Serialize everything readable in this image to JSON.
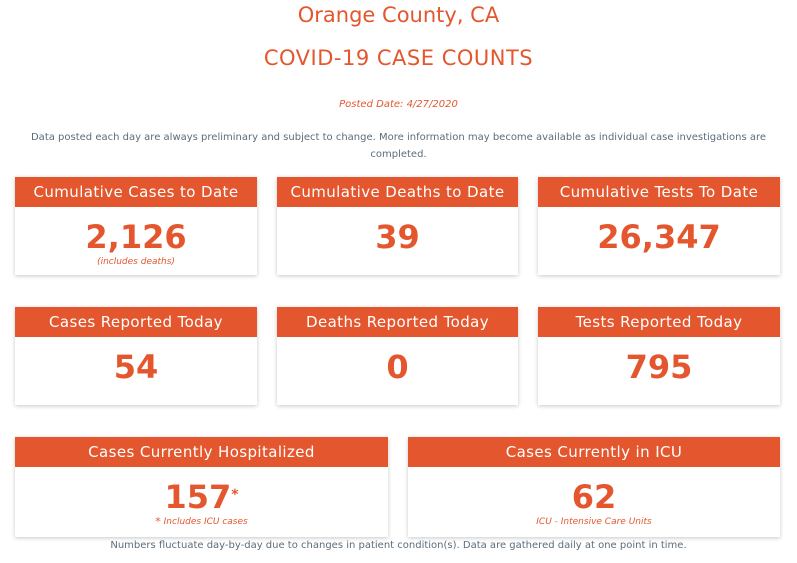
{
  "header": {
    "county": "Orange County, CA",
    "heading": "COVID-19 CASE COUNTS",
    "posted_date": "Posted Date: 4/27/2020",
    "disclaimer": "Data posted each day are always preliminary and subject to change. More information may become available as individual case investigations are completed."
  },
  "cards": {
    "cumulative_cases": {
      "label": "Cumulative Cases to Date",
      "value": "2,126",
      "note": "(includes deaths)"
    },
    "cumulative_deaths": {
      "label": "Cumulative Deaths to Date",
      "value": "39"
    },
    "cumulative_tests": {
      "label": "Cumulative Tests To Date",
      "value": "26,347"
    },
    "cases_today": {
      "label": "Cases Reported Today",
      "value": "54"
    },
    "deaths_today": {
      "label": "Deaths Reported Today",
      "value": "0"
    },
    "tests_today": {
      "label": "Tests Reported Today",
      "value": "795"
    },
    "hospitalized": {
      "label": "Cases Currently Hospitalized",
      "value": "157",
      "marker": "*",
      "note_marker": "*",
      "note": " Includes ICU cases"
    },
    "icu": {
      "label": "Cases Currently in ICU",
      "value": "62",
      "note": "ICU - Intensive Care Units"
    }
  },
  "footer": {
    "text": "Numbers fluctuate day-by-day due to changes in patient condition(s). Data are gathered daily at one point in time."
  },
  "colors": {
    "accent": "#e4572e",
    "text_muted": "#5b6d7b",
    "background": "#ffffff"
  }
}
